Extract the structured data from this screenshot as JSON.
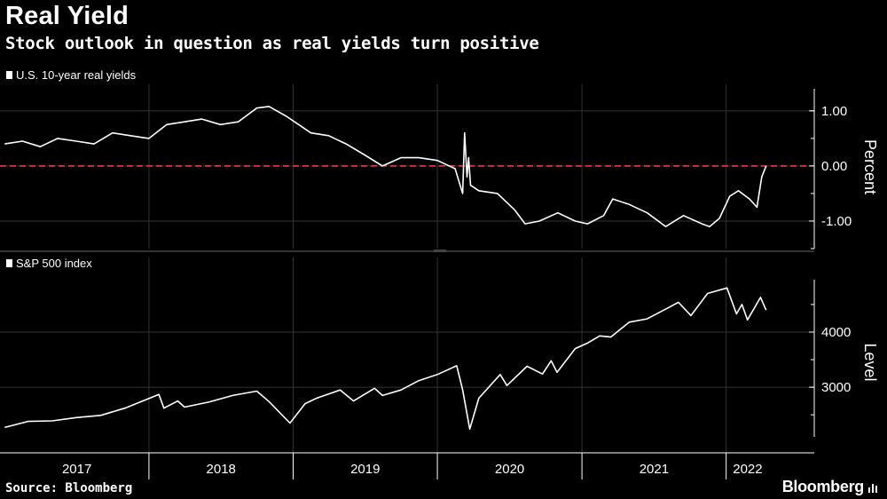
{
  "title": "Real Yield",
  "subtitle": "Stock outlook in question as real yields turn positive",
  "source": "Source: Bloomberg",
  "brand": "Bloomberg",
  "colors": {
    "background": "#000000",
    "line": "#ffffff",
    "zero_line": "#e0323c",
    "grid": "#333333"
  },
  "chart_data": [
    {
      "type": "line",
      "legend": "U.S. 10-year real yields",
      "ylabel": "Percent",
      "yticks": [
        "1.00",
        "0.00",
        "-1.00"
      ],
      "ytick_values": [
        1.0,
        0.0,
        -1.0
      ],
      "ylim": [
        -1.5,
        1.4
      ],
      "reference_line": 0.0,
      "x": [
        "2017-01-01",
        "2017-02-15",
        "2017-04-01",
        "2017-05-15",
        "2017-07-01",
        "2017-08-15",
        "2017-10-01",
        "2017-11-15",
        "2018-01-01",
        "2018-02-15",
        "2018-04-01",
        "2018-05-15",
        "2018-07-01",
        "2018-08-15",
        "2018-10-01",
        "2018-11-01",
        "2018-12-15",
        "2019-01-15",
        "2019-02-15",
        "2019-04-01",
        "2019-05-15",
        "2019-07-01",
        "2019-08-15",
        "2019-10-01",
        "2019-11-15",
        "2020-01-01",
        "2020-02-15",
        "2020-03-05",
        "2020-03-10",
        "2020-03-16",
        "2020-03-20",
        "2020-03-25",
        "2020-04-15",
        "2020-06-01",
        "2020-07-15",
        "2020-08-10",
        "2020-09-15",
        "2020-11-01",
        "2020-12-15",
        "2021-01-15",
        "2021-02-25",
        "2021-03-20",
        "2021-05-01",
        "2021-06-15",
        "2021-08-01",
        "2021-09-15",
        "2021-11-01",
        "2021-11-20",
        "2021-12-15",
        "2022-01-10",
        "2022-02-01",
        "2022-03-01",
        "2022-03-20",
        "2022-04-01",
        "2022-04-12"
      ],
      "values": [
        0.4,
        0.45,
        0.35,
        0.5,
        0.45,
        0.4,
        0.6,
        0.55,
        0.5,
        0.75,
        0.8,
        0.85,
        0.75,
        0.8,
        1.05,
        1.08,
        0.9,
        0.75,
        0.6,
        0.55,
        0.4,
        0.2,
        0.0,
        0.15,
        0.15,
        0.1,
        -0.05,
        -0.5,
        0.6,
        -0.2,
        0.15,
        -0.35,
        -0.45,
        -0.5,
        -0.8,
        -1.05,
        -1.0,
        -0.85,
        -1.0,
        -1.05,
        -0.9,
        -0.6,
        -0.7,
        -0.85,
        -1.1,
        -0.9,
        -1.05,
        -1.1,
        -0.95,
        -0.55,
        -0.45,
        -0.6,
        -0.75,
        -0.2,
        0.0
      ]
    },
    {
      "type": "line",
      "legend": "S&P 500 index",
      "ylabel": "Level",
      "yticks": [
        "4000",
        "3000"
      ],
      "ytick_values": [
        4000,
        3000
      ],
      "ylim": [
        2100,
        4950
      ],
      "x": [
        "2017-01-01",
        "2017-03-01",
        "2017-05-01",
        "2017-07-01",
        "2017-09-01",
        "2017-11-01",
        "2018-01-26",
        "2018-02-08",
        "2018-03-15",
        "2018-04-01",
        "2018-06-01",
        "2018-08-01",
        "2018-10-01",
        "2018-11-01",
        "2018-12-24",
        "2019-01-31",
        "2019-03-01",
        "2019-04-30",
        "2019-06-03",
        "2019-07-26",
        "2019-08-15",
        "2019-10-01",
        "2019-11-15",
        "2020-01-01",
        "2020-02-19",
        "2020-03-05",
        "2020-03-23",
        "2020-04-15",
        "2020-06-08",
        "2020-06-25",
        "2020-08-15",
        "2020-09-23",
        "2020-10-15",
        "2020-10-30",
        "2020-12-15",
        "2021-01-15",
        "2021-02-15",
        "2021-03-15",
        "2021-05-01",
        "2021-06-15",
        "2021-08-15",
        "2021-09-02",
        "2021-10-04",
        "2021-11-15",
        "2022-01-03",
        "2022-01-27",
        "2022-02-10",
        "2022-02-24",
        "2022-03-29",
        "2022-04-12"
      ],
      "values": [
        2270,
        2380,
        2390,
        2450,
        2490,
        2620,
        2870,
        2620,
        2750,
        2640,
        2730,
        2850,
        2930,
        2740,
        2350,
        2700,
        2800,
        2950,
        2750,
        2980,
        2850,
        2950,
        3120,
        3230,
        3390,
        2950,
        2240,
        2800,
        3230,
        3030,
        3380,
        3240,
        3480,
        3270,
        3700,
        3800,
        3930,
        3910,
        4180,
        4240,
        4470,
        4540,
        4300,
        4700,
        4800,
        4330,
        4500,
        4220,
        4630,
        4400
      ]
    }
  ],
  "x_axis": {
    "labels": [
      "2017",
      "2018",
      "2019",
      "2020",
      "2021",
      "2022"
    ]
  }
}
